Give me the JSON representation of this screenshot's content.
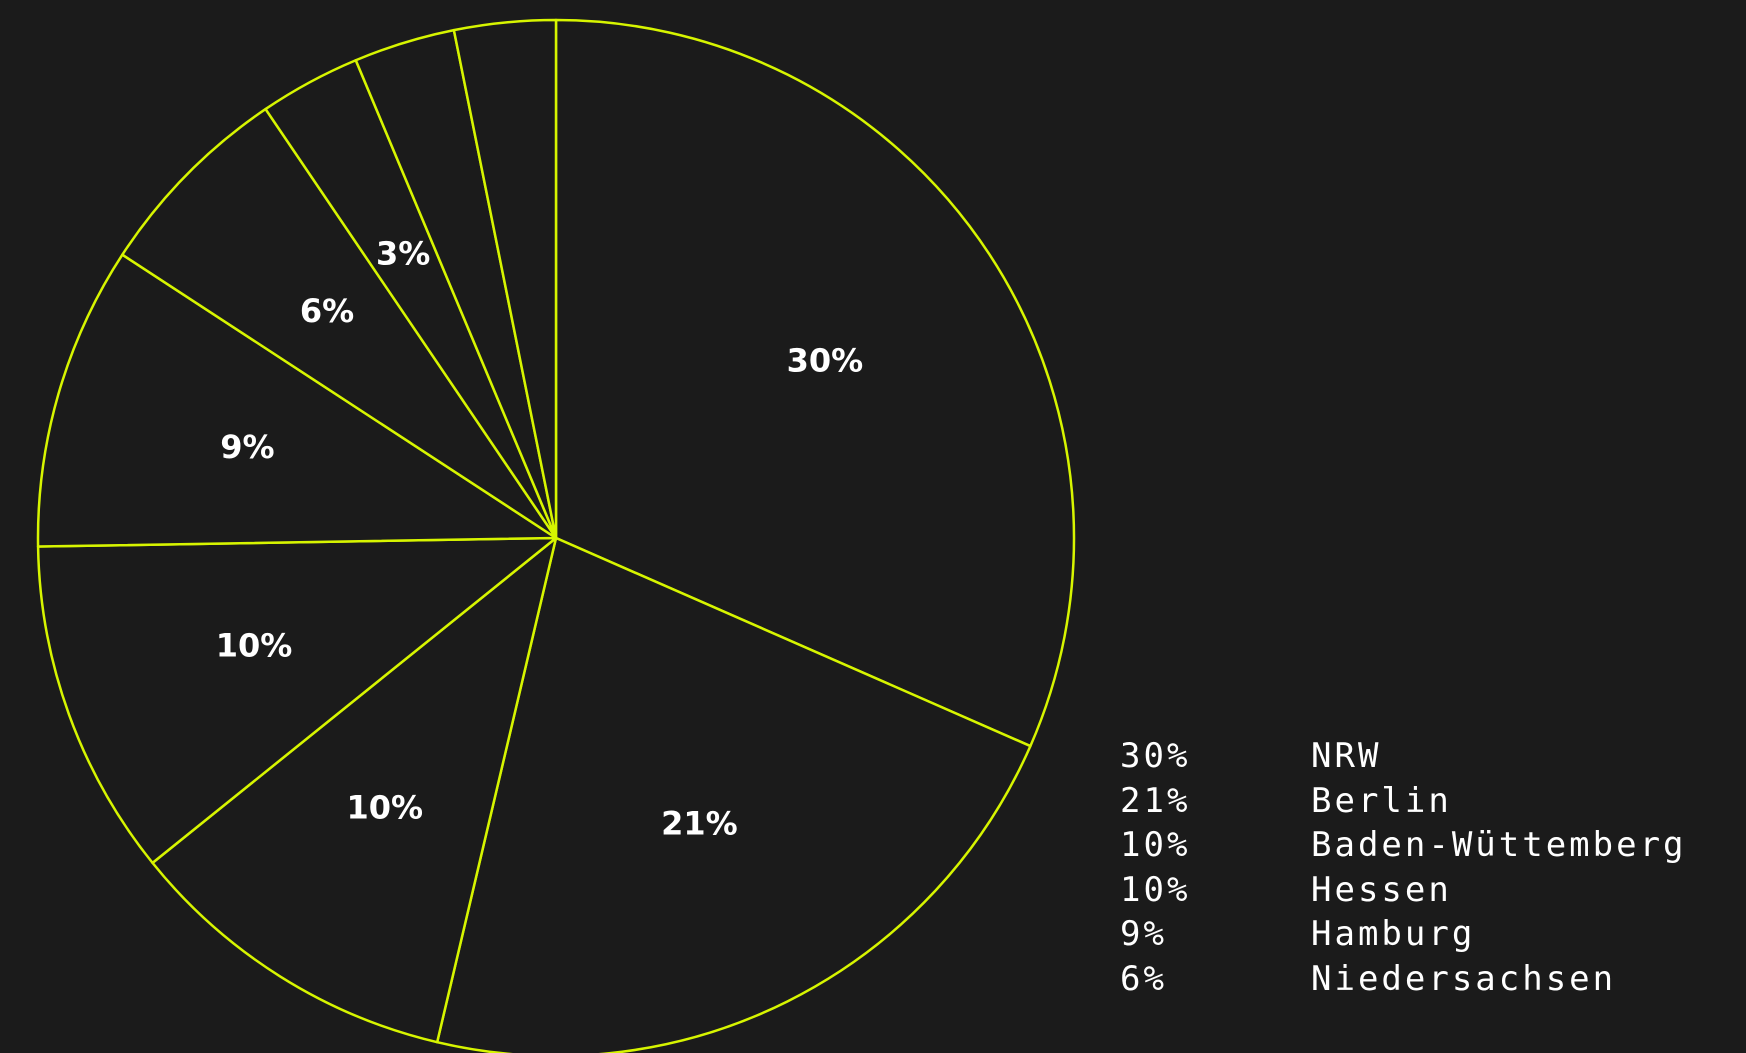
{
  "chart_data": {
    "type": "pie",
    "title": "",
    "colors": {
      "background": "#1b1b1b",
      "stroke": "#d7f500",
      "label": "#ffffff"
    },
    "slices": [
      {
        "name": "NRW",
        "value": 30,
        "label": "30%"
      },
      {
        "name": "Berlin",
        "value": 21,
        "label": "21%"
      },
      {
        "name": "Baden-Wüttemberg",
        "value": 10,
        "label": "10%"
      },
      {
        "name": "Hessen",
        "value": 10,
        "label": "10%"
      },
      {
        "name": "Hamburg",
        "value": 9,
        "label": "9%"
      },
      {
        "name": "Niedersachsen",
        "value": 6,
        "label": "6%"
      },
      {
        "name": "",
        "value": 3,
        "label": "3%"
      },
      {
        "name": "",
        "value": 3,
        "label": ""
      },
      {
        "name": "",
        "value": 3,
        "label": ""
      }
    ],
    "legend": {
      "position": "bottom-right",
      "entries": [
        {
          "value": "30%",
          "name": "NRW"
        },
        {
          "value": "21%",
          "name": "Berlin"
        },
        {
          "value": "10%",
          "name": "Baden-Wüttemberg"
        },
        {
          "value": "10%",
          "name": "Hessen"
        },
        {
          "value": "9%",
          "name": "Hamburg"
        },
        {
          "value": "6%",
          "name": "Niedersachsen"
        }
      ]
    }
  }
}
